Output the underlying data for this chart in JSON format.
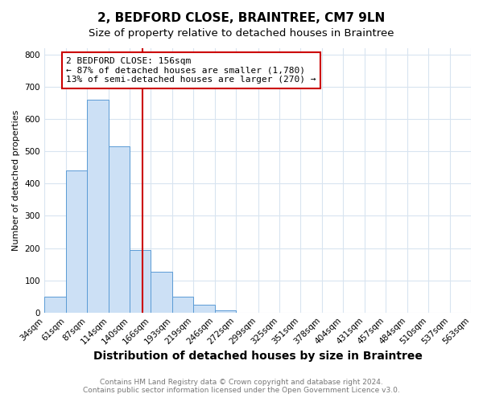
{
  "title": "2, BEDFORD CLOSE, BRAINTREE, CM7 9LN",
  "subtitle": "Size of property relative to detached houses in Braintree",
  "xlabel": "Distribution of detached houses by size in Braintree",
  "ylabel": "Number of detached properties",
  "bar_edges": [
    34,
    61,
    87,
    114,
    140,
    166,
    193,
    219,
    246,
    272,
    299,
    325,
    351,
    378,
    404,
    431,
    457,
    484,
    510,
    537,
    563
  ],
  "bar_heights": [
    50,
    440,
    660,
    515,
    195,
    127,
    50,
    25,
    8,
    0,
    0,
    0,
    0,
    0,
    0,
    0,
    0,
    0,
    0,
    0
  ],
  "bar_color": "#cce0f5",
  "bar_edge_color": "#5b9bd5",
  "vline_x": 156,
  "vline_color": "#cc0000",
  "annotation_box_color": "#cc0000",
  "annotation_text_line1": "2 BEDFORD CLOSE: 156sqm",
  "annotation_text_line2": "← 87% of detached houses are smaller (1,780)",
  "annotation_text_line3": "13% of semi-detached houses are larger (270) →",
  "ylim": [
    0,
    820
  ],
  "yticks": [
    0,
    100,
    200,
    300,
    400,
    500,
    600,
    700,
    800
  ],
  "footer_line1": "Contains HM Land Registry data © Crown copyright and database right 2024.",
  "footer_line2": "Contains public sector information licensed under the Open Government Licence v3.0.",
  "background_color": "#ffffff",
  "plot_background_color": "#ffffff",
  "grid_color": "#d8e4f0",
  "title_fontsize": 11,
  "subtitle_fontsize": 9.5,
  "xlabel_fontsize": 10,
  "ylabel_fontsize": 8,
  "tick_fontsize": 7.5,
  "annotation_fontsize": 8,
  "footer_fontsize": 6.5
}
